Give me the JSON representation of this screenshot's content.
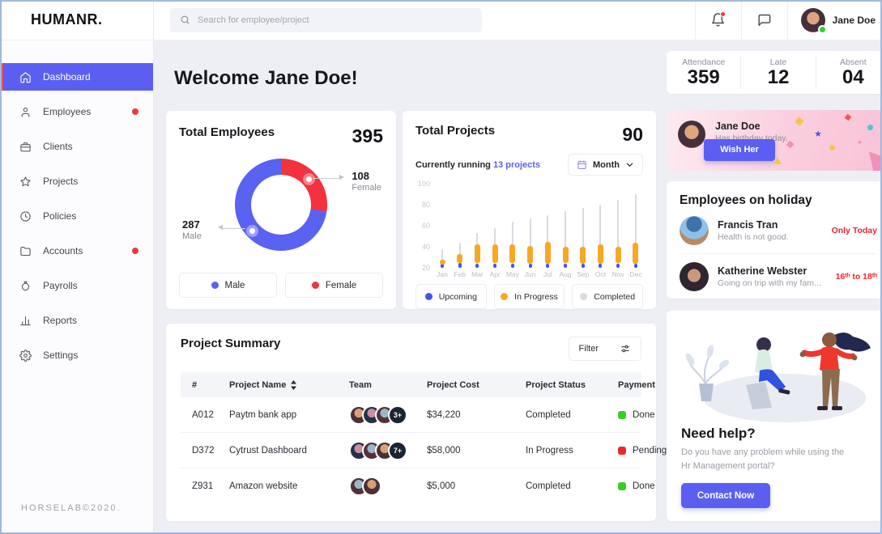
{
  "app": {
    "logo": "HUMANR.",
    "copyright": "HORSELAB©2020."
  },
  "topbar": {
    "search_placeholder": "Search for employee/project",
    "user": {
      "name": "Jane Doe"
    }
  },
  "sidebar": {
    "items": [
      {
        "label": "Dashboard",
        "icon": "home",
        "active": true
      },
      {
        "label": "Employees",
        "icon": "user",
        "dot": true
      },
      {
        "label": "Clients",
        "icon": "briefcase"
      },
      {
        "label": "Projects",
        "icon": "star"
      },
      {
        "label": "Policies",
        "icon": "clock"
      },
      {
        "label": "Accounts",
        "icon": "folder",
        "dot": true
      },
      {
        "label": "Payrolls",
        "icon": "money-bag"
      },
      {
        "label": "Reports",
        "icon": "bar-chart"
      },
      {
        "label": "Settings",
        "icon": "gear"
      }
    ]
  },
  "welcome": {
    "bold": "Welcome",
    "name": "Jane Doe!"
  },
  "attendance": {
    "items": [
      {
        "label": "Attendance",
        "value": "359"
      },
      {
        "label": "Late",
        "value": "12"
      },
      {
        "label": "Absent",
        "value": "04"
      }
    ]
  },
  "employees_card": {
    "title": "Total Employees",
    "total": "395",
    "callout_female": {
      "value": "108",
      "label": "Female"
    },
    "callout_male": {
      "value": "287",
      "label": "Male"
    },
    "legend": [
      {
        "label": "Male"
      },
      {
        "label": "Female"
      }
    ]
  },
  "projects_card": {
    "title": "Total Projects",
    "total": "90",
    "running_prefix": "Currently running",
    "running_highlight": "13 projects",
    "period": "Month",
    "legend": [
      {
        "label": "Upcoming"
      },
      {
        "label": "In Progress"
      },
      {
        "label": "Completed"
      }
    ]
  },
  "chart_data": [
    {
      "type": "donut",
      "title": "Total Employees",
      "total": 395,
      "slices": [
        {
          "label": "Male",
          "value": 287,
          "color": "#5A62F2"
        },
        {
          "label": "Female",
          "value": 108,
          "color": "#F2333E"
        }
      ]
    },
    {
      "type": "range-bar",
      "title": "Total Projects by month",
      "categories": [
        "Jan",
        "Feb",
        "Mar",
        "Apr",
        "May",
        "Jun",
        "Jul",
        "Aug",
        "Sep",
        "Oct",
        "Nov",
        "Dec"
      ],
      "ylim": [
        20,
        100
      ],
      "yticks": [
        100,
        80,
        60,
        40,
        20
      ],
      "legend_position": "bottom",
      "series": [
        {
          "name": "Completed",
          "color": "#D9DBE1",
          "values": [
            38,
            44,
            53,
            58,
            64,
            67,
            70,
            74,
            77,
            80,
            85,
            90
          ]
        },
        {
          "name": "In Progress",
          "color": "#F7A823",
          "values": [
            [
              23,
              28
            ],
            [
              25,
              33
            ],
            [
              25,
              42
            ],
            [
              25,
              42
            ],
            [
              25,
              42
            ],
            [
              24,
              41
            ],
            [
              24,
              45
            ],
            [
              25,
              40
            ],
            [
              24,
              40
            ],
            [
              24,
              42
            ],
            [
              25,
              40
            ],
            [
              24,
              44
            ]
          ]
        },
        {
          "name": "Upcoming",
          "color": "#4553E8",
          "values": [
            [
              20,
              24
            ],
            [
              20,
              25
            ],
            [
              20,
              24
            ],
            [
              20,
              24
            ],
            [
              20,
              24
            ],
            [
              20,
              24
            ],
            [
              20,
              24
            ],
            [
              20,
              24
            ],
            [
              20,
              24
            ],
            [
              20,
              24
            ],
            [
              20,
              24
            ],
            [
              20,
              24
            ]
          ]
        }
      ]
    }
  ],
  "birthday_card": {
    "name": "Jane Doe",
    "message": "Has birthday today.",
    "button": "Wish Her"
  },
  "holiday_card": {
    "title": "Employees on holiday",
    "entries": [
      {
        "name": "Francis Tran",
        "note": "Health is not good.",
        "duration": "Only Today"
      },
      {
        "name": "Katherine Webster",
        "note": "Going on trip with my fam...",
        "duration": "16ᵗʰ to 18ᵗʰ"
      }
    ]
  },
  "project_summary": {
    "title": "Project Summary",
    "filter": "Filter",
    "columns": [
      "#",
      "Project Name",
      "Team",
      "Project Cost",
      "Project Status",
      "Payment"
    ],
    "rows": [
      {
        "id": "A012",
        "name": "Paytm bank app",
        "team_badge": "3+",
        "cost": "$34,220",
        "status": "Completed",
        "payment": "Done",
        "payment_color": "green"
      },
      {
        "id": "D372",
        "name": "Cytrust Dashboard",
        "team_badge": "7+",
        "cost": "$58,000",
        "status": "In Progress",
        "payment": "Pending",
        "payment_color": "red"
      },
      {
        "id": "Z931",
        "name": "Amazon website",
        "team_badge": "",
        "cost": "$5,000",
        "status": "Completed",
        "payment": "Done",
        "payment_color": "green"
      }
    ]
  },
  "help_card": {
    "title": "Need help?",
    "line1": "Do you have any problem while using the",
    "line2": "Hr Management portal?",
    "button": "Contact Now"
  },
  "colors": {
    "accent": "#5B5FF1",
    "red": "#F2333E",
    "orange": "#F7A823",
    "green": "#35D024",
    "male_blue": "#5A62F2",
    "completed_gray": "#D9DBE1",
    "pink_card": "#F8C3D6",
    "active_border_red": "#E8505B"
  }
}
